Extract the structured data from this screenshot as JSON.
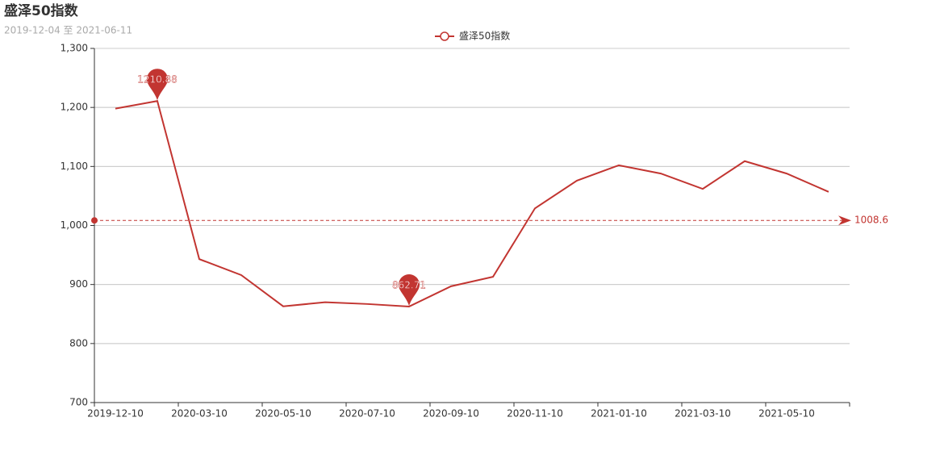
{
  "chart_data": {
    "type": "line",
    "title": "盛泽50指数",
    "subtitle": "2019-12-04 至 2021-06-11",
    "categories": [
      "2019-12-10",
      null,
      "2020-03-10",
      null,
      "2020-05-10",
      null,
      "2020-07-10",
      null,
      "2020-09-10",
      null,
      "2020-11-10",
      null,
      "2021-01-10",
      null,
      "2021-03-10",
      null,
      "2021-05-10",
      null
    ],
    "series": [
      {
        "name": "盛泽50指数",
        "color": "#c23531",
        "values": [
          1198,
          1210.88,
          943,
          916,
          863,
          870,
          867,
          862.71,
          897,
          913,
          1029,
          1076,
          1102,
          1088,
          1062,
          1109,
          1088,
          1057
        ]
      }
    ],
    "mean_line": 1008.6,
    "ylim": [
      700,
      1300
    ],
    "yticks": [
      700,
      800,
      900,
      {
        "value": 1000,
        "label": "1,000"
      },
      {
        "value": 1100,
        "label": "1,100"
      },
      {
        "value": 1200,
        "label": "1,200"
      },
      {
        "value": 1300,
        "label": "1,300"
      }
    ],
    "grid": true
  }
}
